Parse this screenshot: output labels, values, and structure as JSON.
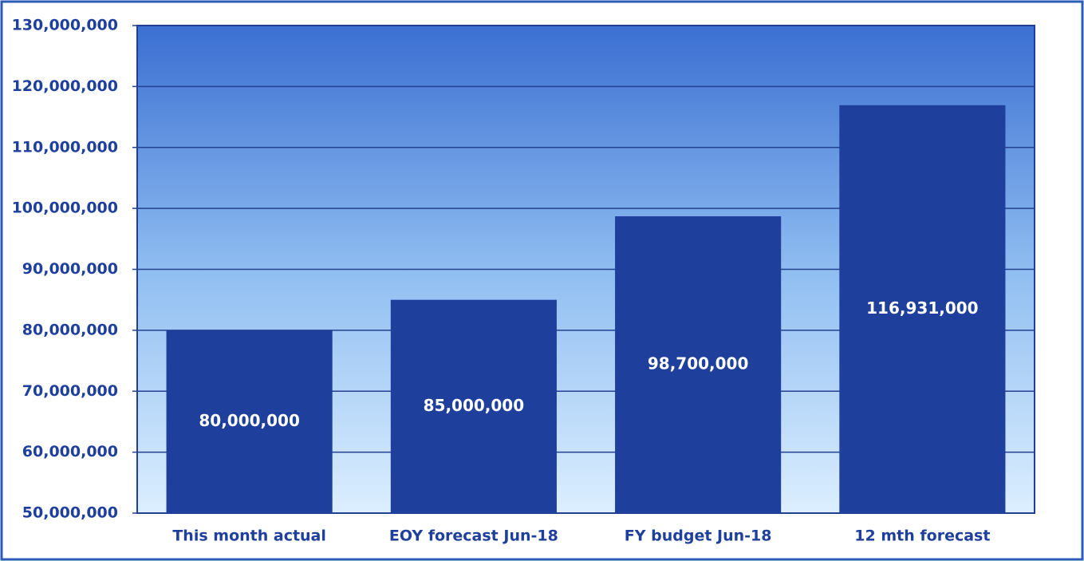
{
  "chart_data": {
    "type": "bar",
    "categories": [
      "This month actual",
      "EOY forecast Jun-18",
      "FY budget Jun-18",
      "12 mth forecast"
    ],
    "values": [
      80000000,
      85000000,
      98700000,
      116931000
    ],
    "value_labels": [
      "80,000,000",
      "85,000,000",
      "98,700,000",
      "116,931,000"
    ],
    "color": "#1e3f9c",
    "ylim": [
      50000000,
      130000000
    ],
    "yticks": [
      {
        "value": 50000000,
        "label": "50,000,000"
      },
      {
        "value": 60000000,
        "label": "60,000,000"
      },
      {
        "value": 70000000,
        "label": "70,000,000"
      },
      {
        "value": 80000000,
        "label": "80,000,000"
      },
      {
        "value": 90000000,
        "label": "90,000,000"
      },
      {
        "value": 100000000,
        "label": "100,000,000"
      },
      {
        "value": 110000000,
        "label": "110,000,000"
      },
      {
        "value": 120000000,
        "label": "120,000,000"
      },
      {
        "value": 130000000,
        "label": "130,000,000"
      }
    ],
    "grid": true
  }
}
